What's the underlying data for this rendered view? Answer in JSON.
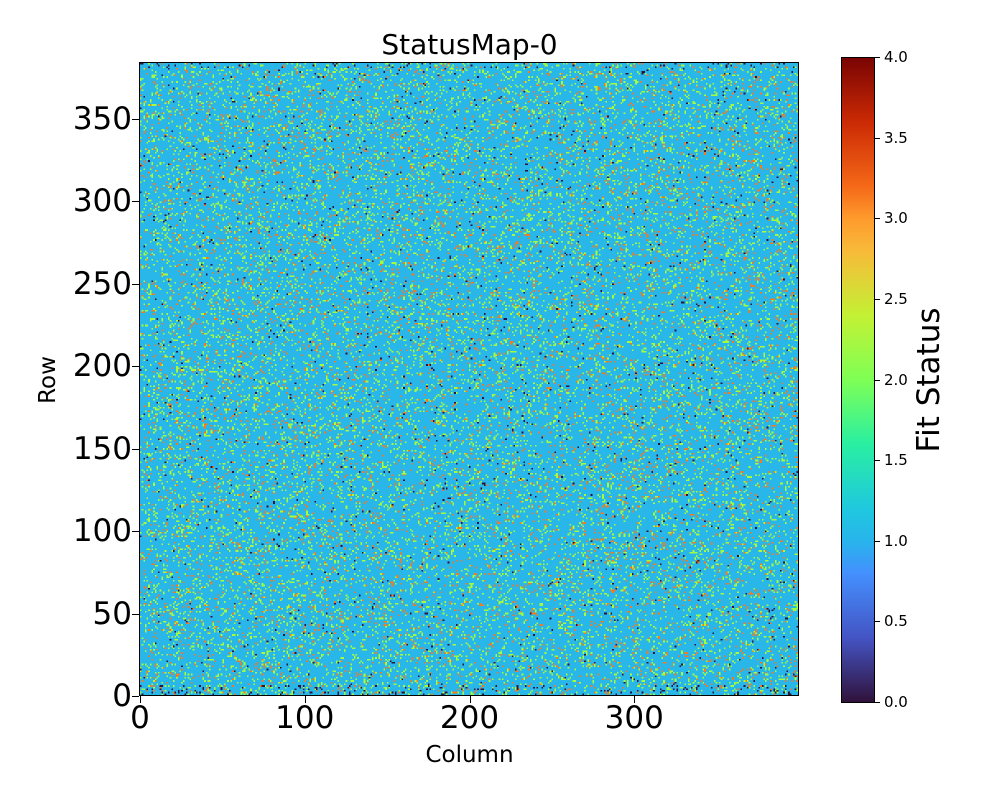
{
  "chart_data": {
    "type": "heatmap",
    "title": "StatusMap-0",
    "xlabel": "Column",
    "ylabel": "Row",
    "colorbar_label": "Fit Status",
    "xlim": [
      0,
      400
    ],
    "ylim": [
      0,
      384
    ],
    "xticks": [
      0,
      100,
      200,
      300
    ],
    "yticks": [
      0,
      50,
      100,
      150,
      200,
      250,
      300,
      350
    ],
    "colorbar_range": [
      0,
      4
    ],
    "colorbar_ticks": [
      "0.0",
      "0.5",
      "1.0",
      "1.5",
      "2.0",
      "2.5",
      "3.0",
      "3.5",
      "4.0"
    ],
    "colormap": "turbo",
    "grid": false,
    "status_values": [
      0,
      1,
      2,
      3
    ],
    "status_colors": [
      "#30123b",
      "#29b6e8",
      "#a4fc3c",
      "#f8781e"
    ],
    "approx_fraction": {
      "0": 0.01,
      "1": 0.85,
      "2": 0.1,
      "3": 0.04
    },
    "note_values": "status 0 more frequent near bottom rows"
  }
}
